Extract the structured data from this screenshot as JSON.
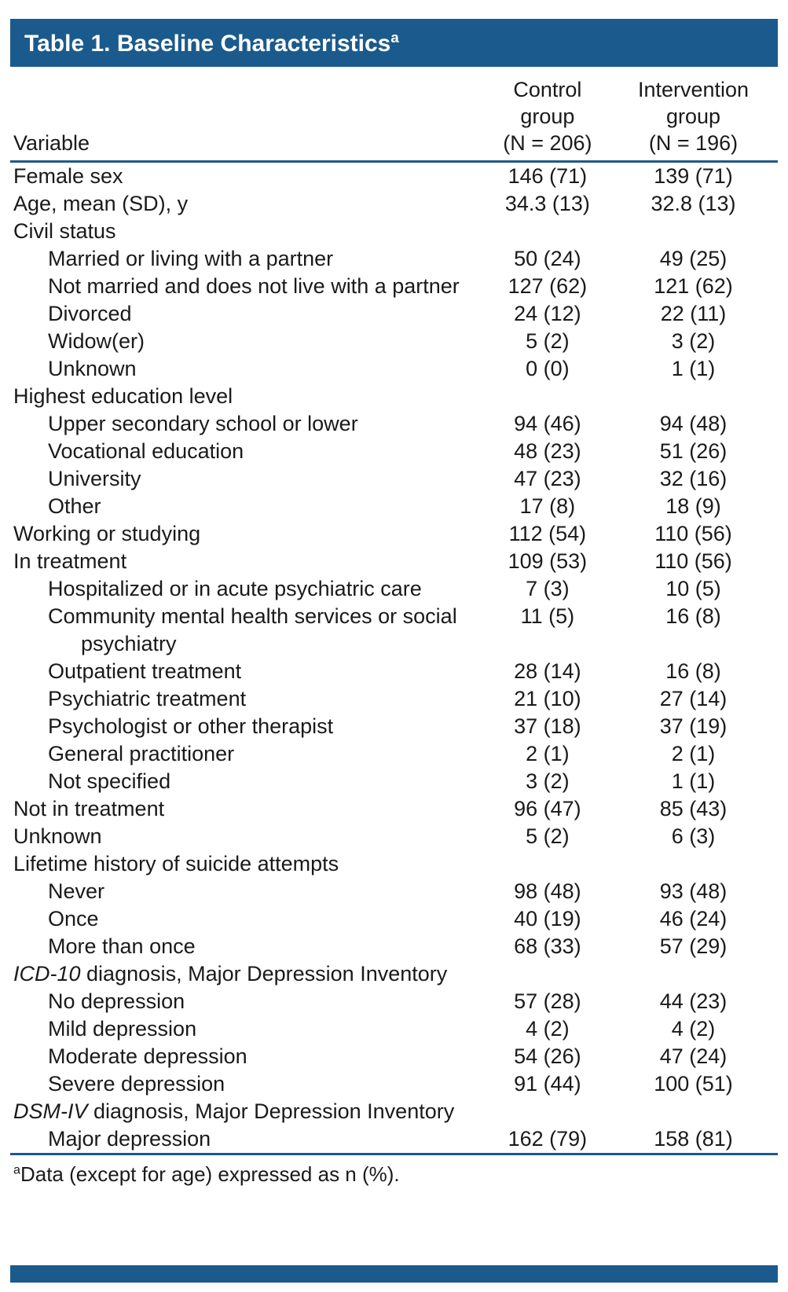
{
  "title": {
    "text": "Table 1. Baseline Characteristics",
    "sup": "a"
  },
  "table": {
    "columns": {
      "variable": "Variable",
      "control": [
        "Control",
        "group",
        "(N = 206)"
      ],
      "intervention": [
        "Intervention",
        "group",
        "(N = 196)"
      ]
    },
    "rows": [
      {
        "indent": 0,
        "label": "Female sex",
        "control": "146 (71)",
        "intervention": "139 (71)"
      },
      {
        "indent": 0,
        "label": "Age, mean (SD), y",
        "control": "34.3 (13)",
        "intervention": "32.8 (13)"
      },
      {
        "indent": 0,
        "label": "Civil status",
        "control": "",
        "intervention": "",
        "section": true
      },
      {
        "indent": 1,
        "label": "Married or living with a partner",
        "control": "50 (24)",
        "intervention": "49 (25)"
      },
      {
        "indent": 1,
        "label": "Not married and does not live with a partner",
        "control": "127 (62)",
        "intervention": "121 (62)"
      },
      {
        "indent": 1,
        "label": "Divorced",
        "control": "24 (12)",
        "intervention": "22 (11)"
      },
      {
        "indent": 1,
        "label": "Widow(er)",
        "control": "5 (2)",
        "intervention": "3 (2)"
      },
      {
        "indent": 1,
        "label": "Unknown",
        "control": "0 (0)",
        "intervention": "1 (1)"
      },
      {
        "indent": 0,
        "label": "Highest education level",
        "control": "",
        "intervention": "",
        "section": true
      },
      {
        "indent": 1,
        "label": "Upper secondary school or lower",
        "control": "94 (46)",
        "intervention": "94 (48)"
      },
      {
        "indent": 1,
        "label": "Vocational education",
        "control": "48 (23)",
        "intervention": "51 (26)"
      },
      {
        "indent": 1,
        "label": "University",
        "control": "47 (23)",
        "intervention": "32 (16)"
      },
      {
        "indent": 1,
        "label": "Other",
        "control": "17 (8)",
        "intervention": "18 (9)"
      },
      {
        "indent": 0,
        "label": "Working or studying",
        "control": "112 (54)",
        "intervention": "110 (56)"
      },
      {
        "indent": 0,
        "label": "In treatment",
        "control": "109 (53)",
        "intervention": "110 (56)"
      },
      {
        "indent": 1,
        "label": "Hospitalized or in acute psychiatric care",
        "control": "7 (3)",
        "intervention": "10 (5)"
      },
      {
        "indent": 1,
        "label": "Community mental health services or social psychiatry",
        "control": "11 (5)",
        "intervention": "16 (8)",
        "wrap": true
      },
      {
        "indent": 1,
        "label": "Outpatient treatment",
        "control": "28 (14)",
        "intervention": "16 (8)"
      },
      {
        "indent": 1,
        "label": "Psychiatric treatment",
        "control": "21 (10)",
        "intervention": "27 (14)"
      },
      {
        "indent": 1,
        "label": "Psychologist or other therapist",
        "control": "37 (18)",
        "intervention": "37 (19)"
      },
      {
        "indent": 1,
        "label": "General practitioner",
        "control": "2 (1)",
        "intervention": "2 (1)"
      },
      {
        "indent": 1,
        "label": "Not specified",
        "control": "3 (2)",
        "intervention": "1 (1)"
      },
      {
        "indent": 0,
        "label": "Not in treatment",
        "control": "96 (47)",
        "intervention": "85 (43)"
      },
      {
        "indent": 0,
        "label": "Unknown",
        "control": "5 (2)",
        "intervention": "6 (3)"
      },
      {
        "indent": 0,
        "label": "Lifetime history of suicide attempts",
        "control": "",
        "intervention": "",
        "section": true
      },
      {
        "indent": 1,
        "label": "Never",
        "control": "98 (48)",
        "intervention": "93 (48)"
      },
      {
        "indent": 1,
        "label": "Once",
        "control": "40 (19)",
        "intervention": "46 (24)"
      },
      {
        "indent": 1,
        "label": "More than once",
        "control": "68 (33)",
        "intervention": "57 (29)"
      },
      {
        "indent": 0,
        "label_italic": "ICD-10",
        "label": " diagnosis, Major Depression Inventory",
        "control": "",
        "intervention": "",
        "section": true
      },
      {
        "indent": 1,
        "label": "No depression",
        "control": "57 (28)",
        "intervention": "44 (23)"
      },
      {
        "indent": 1,
        "label": "Mild depression",
        "control": "4 (2)",
        "intervention": "4 (2)"
      },
      {
        "indent": 1,
        "label": "Moderate depression",
        "control": "54 (26)",
        "intervention": "47 (24)"
      },
      {
        "indent": 1,
        "label": "Severe depression",
        "control": "91 (44)",
        "intervention": "100 (51)"
      },
      {
        "indent": 0,
        "label_italic": "DSM-IV",
        "label": " diagnosis, Major Depression Inventory",
        "control": "",
        "intervention": "",
        "section": true
      },
      {
        "indent": 1,
        "label": "Major depression",
        "control": "162 (79)",
        "intervention": "158 (81)"
      }
    ]
  },
  "footnote": {
    "sup": "a",
    "text": "Data (except for age) expressed as n (%)."
  },
  "colors": {
    "accent_blue": "#1b5a8c",
    "text": "#1a1a1a",
    "background": "#ffffff"
  }
}
